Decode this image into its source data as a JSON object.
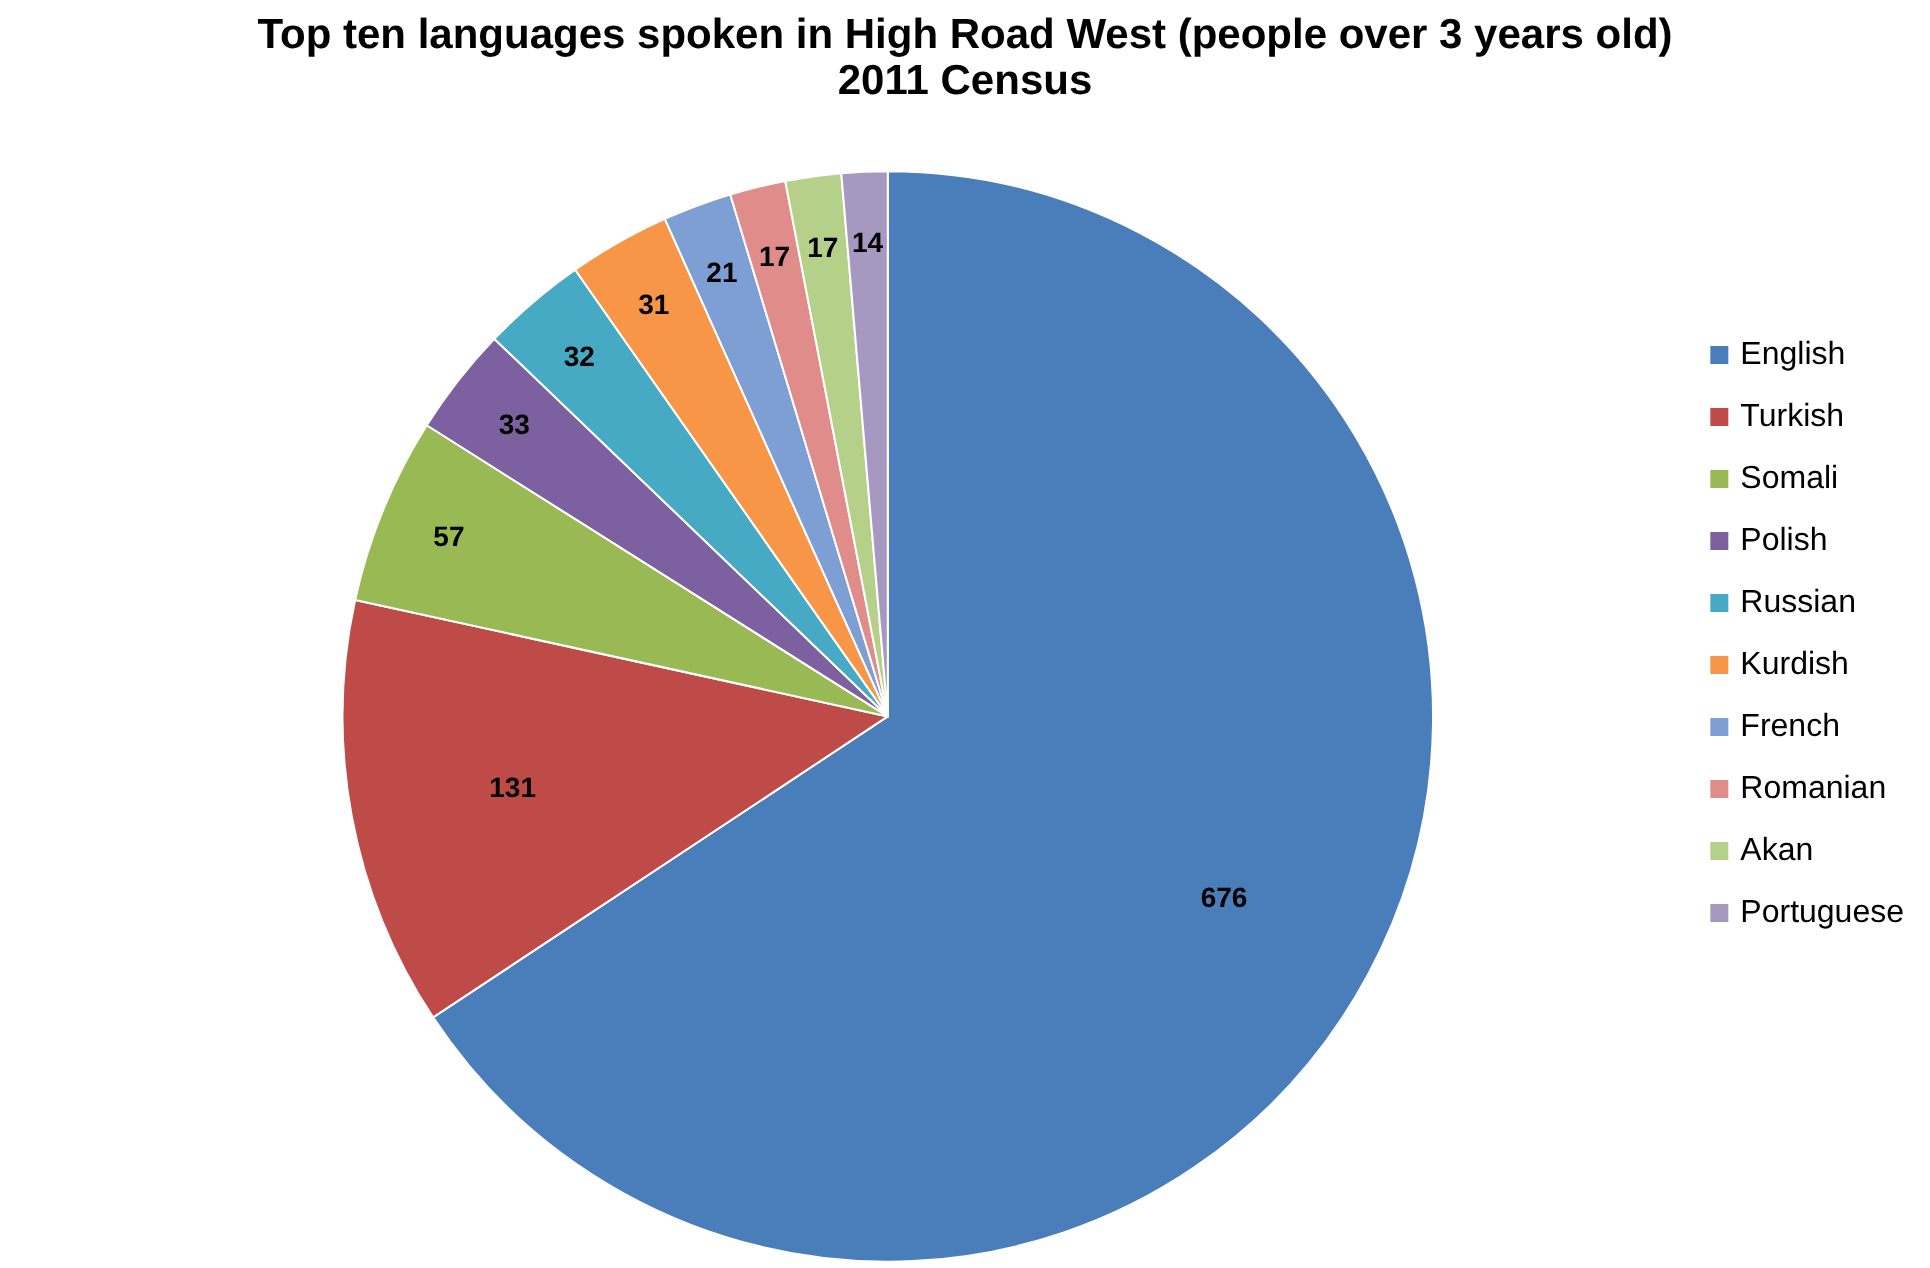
{
  "chart_data": {
    "type": "pie",
    "title": "Top ten languages spoken in High Road West (people over 3 years old)",
    "subtitle": "2011 Census",
    "categories": [
      "English",
      "Turkish",
      "Somali",
      "Polish",
      "Russian",
      "Kurdish",
      "French",
      "Romanian",
      "Akan",
      "Portuguese"
    ],
    "values": [
      676,
      131,
      57,
      33,
      32,
      31,
      21,
      17,
      17,
      14
    ],
    "colors": [
      "#4a7ebb",
      "#be4b48",
      "#98b954",
      "#7d60a0",
      "#46aac5",
      "#f79646",
      "#7d9fd3",
      "#e08c8a",
      "#b5d189",
      "#a798c2"
    ],
    "data_labels": true,
    "legend": "right"
  }
}
